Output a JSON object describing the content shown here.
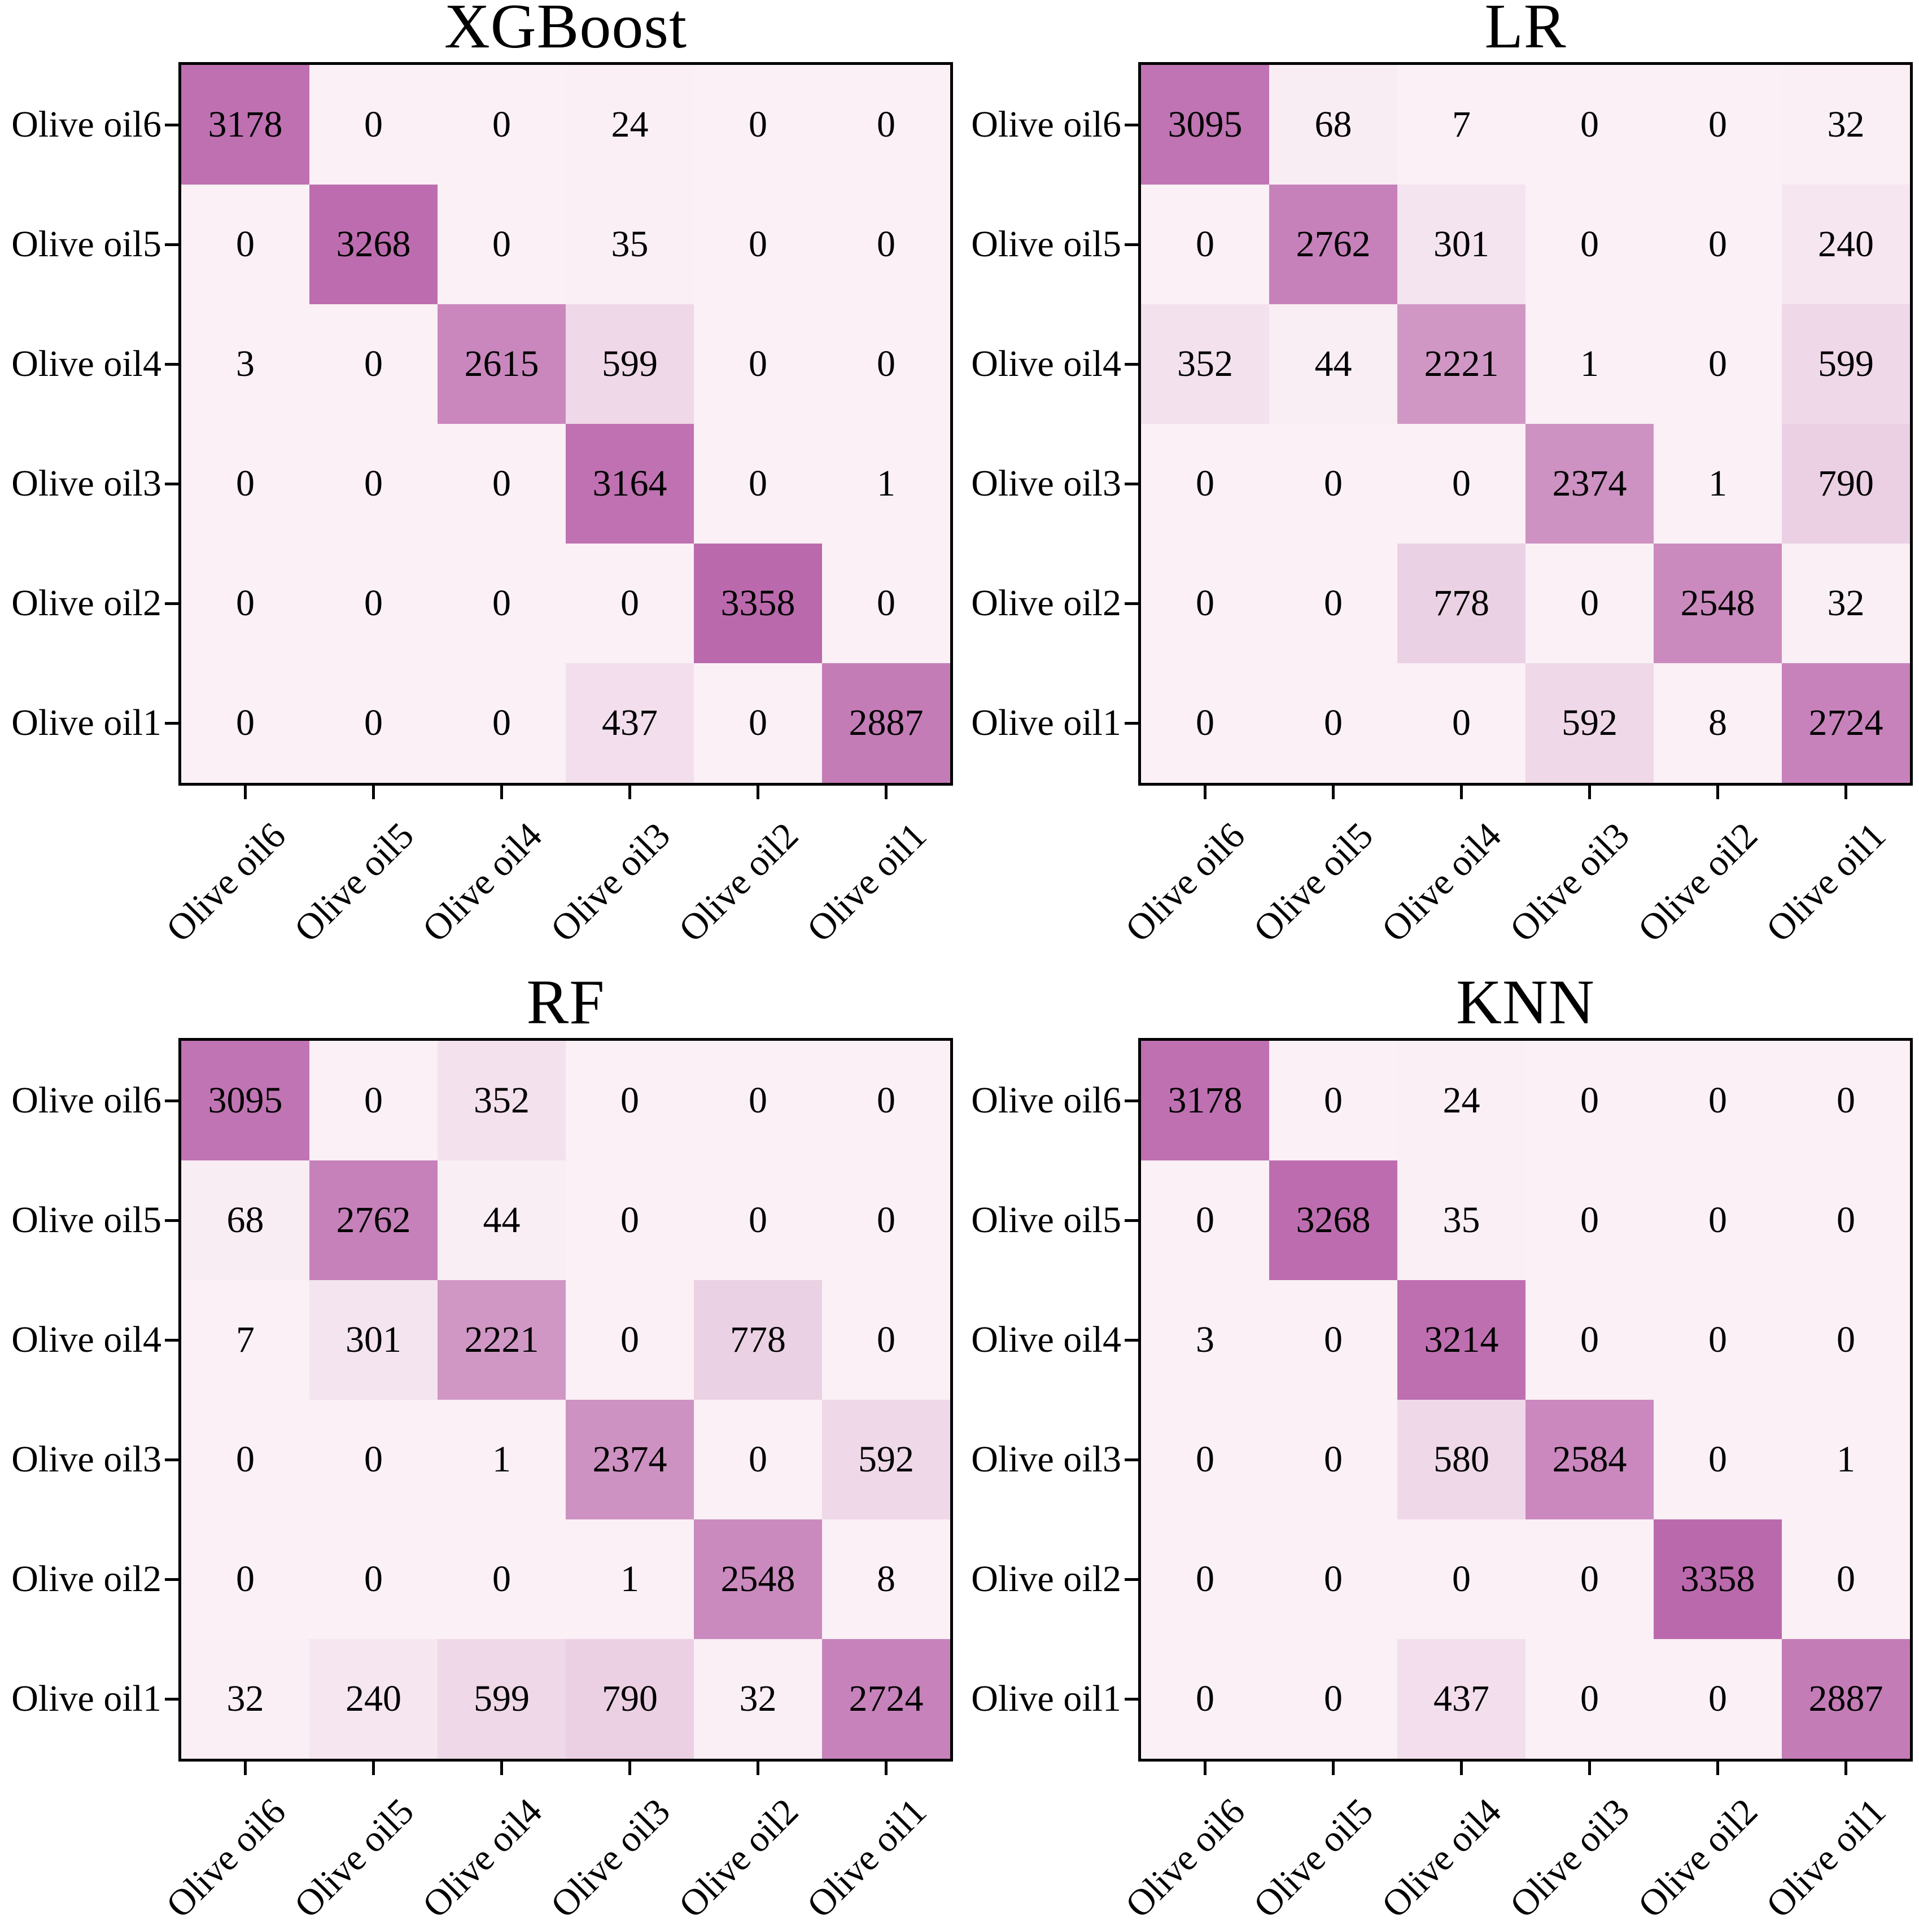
{
  "page": {
    "background": "#ffffff",
    "text_color": "#000000"
  },
  "colormap": {
    "low": "#faf0f5",
    "high": "#bb69ad",
    "vmin": 0,
    "vmax": 3358
  },
  "class_labels": [
    "Olive oil6",
    "Olive oil5",
    "Olive oil4",
    "Olive oil3",
    "Olive oil2",
    "Olive oil1"
  ],
  "chart_data": [
    {
      "type": "heatmap",
      "title": "XGBoost",
      "rows": [
        "Olive oil6",
        "Olive oil5",
        "Olive oil4",
        "Olive oil3",
        "Olive oil2",
        "Olive oil1"
      ],
      "columns": [
        "Olive oil6",
        "Olive oil5",
        "Olive oil4",
        "Olive oil3",
        "Olive oil2",
        "Olive oil1"
      ],
      "values": [
        [
          3178,
          0,
          0,
          24,
          0,
          0
        ],
        [
          0,
          3268,
          0,
          35,
          0,
          0
        ],
        [
          3,
          0,
          2615,
          599,
          0,
          0
        ],
        [
          0,
          0,
          0,
          3164,
          0,
          1
        ],
        [
          0,
          0,
          0,
          0,
          3358,
          0
        ],
        [
          0,
          0,
          0,
          437,
          0,
          2887
        ]
      ]
    },
    {
      "type": "heatmap",
      "title": "LR",
      "rows": [
        "Olive oil6",
        "Olive oil5",
        "Olive oil4",
        "Olive oil3",
        "Olive oil2",
        "Olive oil1"
      ],
      "columns": [
        "Olive oil6",
        "Olive oil5",
        "Olive oil4",
        "Olive oil3",
        "Olive oil2",
        "Olive oil1"
      ],
      "values": [
        [
          3095,
          68,
          7,
          0,
          0,
          32
        ],
        [
          0,
          2762,
          301,
          0,
          0,
          240
        ],
        [
          352,
          44,
          2221,
          1,
          0,
          599
        ],
        [
          0,
          0,
          0,
          2374,
          1,
          790
        ],
        [
          0,
          0,
          778,
          0,
          2548,
          32
        ],
        [
          0,
          0,
          0,
          592,
          8,
          2724
        ]
      ]
    },
    {
      "type": "heatmap",
      "title": "RF",
      "rows": [
        "Olive oil6",
        "Olive oil5",
        "Olive oil4",
        "Olive oil3",
        "Olive oil2",
        "Olive oil1"
      ],
      "columns": [
        "Olive oil6",
        "Olive oil5",
        "Olive oil4",
        "Olive oil3",
        "Olive oil2",
        "Olive oil1"
      ],
      "values": [
        [
          3095,
          0,
          352,
          0,
          0,
          0
        ],
        [
          68,
          2762,
          44,
          0,
          0,
          0
        ],
        [
          7,
          301,
          2221,
          0,
          778,
          0
        ],
        [
          0,
          0,
          1,
          2374,
          0,
          592
        ],
        [
          0,
          0,
          0,
          1,
          2548,
          8
        ],
        [
          32,
          240,
          599,
          790,
          32,
          2724
        ]
      ]
    },
    {
      "type": "heatmap",
      "title": "KNN",
      "rows": [
        "Olive oil6",
        "Olive oil5",
        "Olive oil4",
        "Olive oil3",
        "Olive oil2",
        "Olive oil1"
      ],
      "columns": [
        "Olive oil6",
        "Olive oil5",
        "Olive oil4",
        "Olive oil3",
        "Olive oil2",
        "Olive oil1"
      ],
      "values": [
        [
          3178,
          0,
          24,
          0,
          0,
          0
        ],
        [
          0,
          3268,
          35,
          0,
          0,
          0
        ],
        [
          3,
          0,
          3214,
          0,
          0,
          0
        ],
        [
          0,
          0,
          580,
          2584,
          0,
          1
        ],
        [
          0,
          0,
          0,
          0,
          3358,
          0
        ],
        [
          0,
          0,
          437,
          0,
          0,
          2887
        ]
      ]
    }
  ]
}
